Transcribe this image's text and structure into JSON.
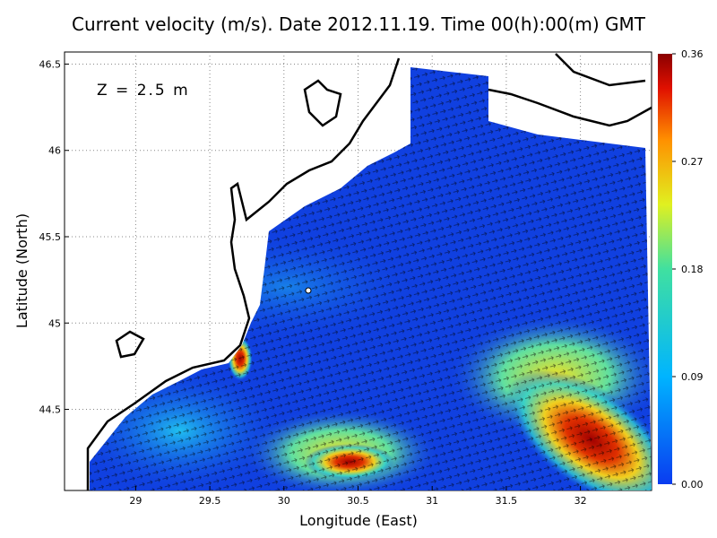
{
  "chart_data": {
    "type": "quiver",
    "title": "Current velocity (m/s). Date 2012.11.19. Time 00(h):00(m) GMT",
    "annotation": "Z = 2.5 m",
    "xlabel": "Longitude (East)",
    "ylabel": "Latitude (North)",
    "xlim": [
      28.52,
      32.48
    ],
    "ylim": [
      44.03,
      46.57
    ],
    "xticks": [
      29,
      29.5,
      30,
      30.5,
      31,
      31.5,
      32
    ],
    "yticks": [
      44.5,
      45,
      45.5,
      46,
      46.5
    ],
    "grid": true,
    "colorbar": {
      "lim": [
        0,
        0.36
      ],
      "ticks": [
        {
          "value": 0,
          "label": "0.00"
        },
        {
          "value": 0.09,
          "label": "0.09"
        },
        {
          "value": 0.18,
          "label": "0.18"
        },
        {
          "value": 0.27,
          "label": "0.27"
        },
        {
          "value": 0.36,
          "label": "0.36"
        }
      ]
    }
  }
}
